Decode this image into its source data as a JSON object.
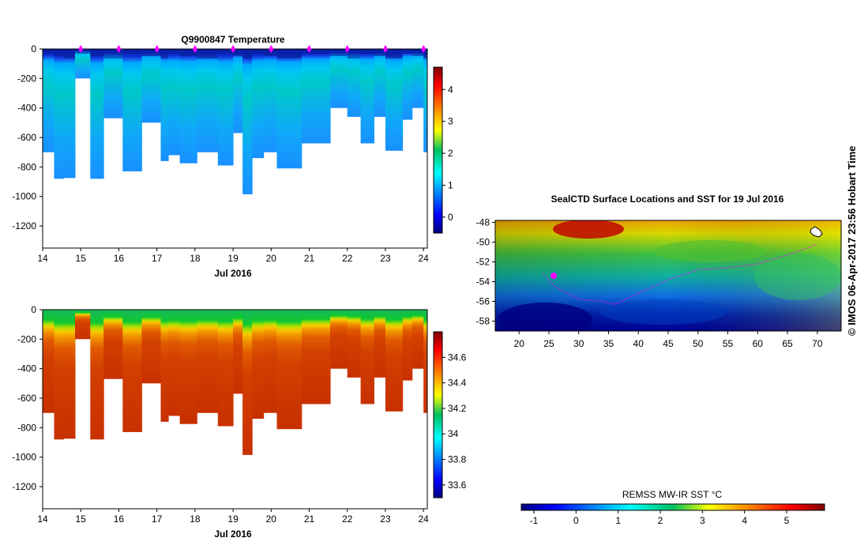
{
  "top": {
    "title": "Q9900847  Temperature",
    "xlabel": "Jul 2016",
    "x_ticks": [
      "14",
      "15",
      "16",
      "17",
      "18",
      "19",
      "20",
      "21",
      "22",
      "23",
      "24"
    ],
    "y_ticks": [
      "0",
      "-200",
      "-400",
      "-600",
      "-800",
      "-1000",
      "-1200"
    ],
    "cbar_ticks": [
      "4",
      "3",
      "2",
      "1",
      "0"
    ]
  },
  "bottom": {
    "xlabel": "Jul 2016",
    "x_ticks": [
      "14",
      "15",
      "16",
      "17",
      "18",
      "19",
      "20",
      "21",
      "22",
      "23",
      "24"
    ],
    "y_ticks": [
      "0",
      "-200",
      "-400",
      "-600",
      "-800",
      "-1000",
      "-1200"
    ],
    "cbar_ticks": [
      "34.6",
      "34.4",
      "34.2",
      "34",
      "33.8",
      "33.6"
    ]
  },
  "map": {
    "title": "SealCTD Surface Locations and SST for 19 Jul 2016",
    "lon_ticks": [
      "20",
      "25",
      "30",
      "35",
      "40",
      "45",
      "50",
      "55",
      "60",
      "65",
      "70"
    ],
    "lat_ticks": [
      "-48",
      "-50",
      "-52",
      "-54",
      "-56",
      "-58"
    ],
    "cbar_label": "REMSS MW-IR SST °C",
    "cbar_ticks": [
      "-1",
      "0",
      "1",
      "2",
      "3",
      "4",
      "5"
    ]
  },
  "credit": "© IMOS 06-Apr-2017 23:56 Hobart Time",
  "colors": {
    "magenta": "#ff00ff",
    "dark_blue": "#00007f",
    "dark_red": "#7f0000"
  },
  "chart_data": [
    {
      "type": "heatmap",
      "title": "Q9900847  Temperature",
      "xlabel": "Jul 2016",
      "ylabel": "",
      "xlim": [
        14,
        24.1
      ],
      "ylim": [
        -1350,
        0
      ],
      "clim": [
        -0.5,
        4.7
      ],
      "surface_markers_day": [
        15,
        16,
        17,
        18,
        19,
        20,
        21,
        22,
        23,
        24
      ],
      "profiles": [
        {
          "day": 14.0,
          "max_depth": 700
        },
        {
          "day": 14.3,
          "max_depth": 880
        },
        {
          "day": 14.55,
          "max_depth": 875
        },
        {
          "day": 14.85,
          "max_depth": 200
        },
        {
          "day": 15.25,
          "max_depth": 880
        },
        {
          "day": 15.6,
          "max_depth": 470
        },
        {
          "day": 16.1,
          "max_depth": 830
        },
        {
          "day": 16.6,
          "max_depth": 500
        },
        {
          "day": 17.1,
          "max_depth": 760
        },
        {
          "day": 17.3,
          "max_depth": 720
        },
        {
          "day": 17.6,
          "max_depth": 775
        },
        {
          "day": 18.05,
          "max_depth": 700
        },
        {
          "day": 18.6,
          "max_depth": 790
        },
        {
          "day": 19.0,
          "max_depth": 570
        },
        {
          "day": 19.25,
          "max_depth": 985
        },
        {
          "day": 19.5,
          "max_depth": 740
        },
        {
          "day": 19.8,
          "max_depth": 700
        },
        {
          "day": 20.15,
          "max_depth": 810
        },
        {
          "day": 20.8,
          "max_depth": 640
        },
        {
          "day": 21.55,
          "max_depth": 400
        },
        {
          "day": 22.0,
          "max_depth": 460
        },
        {
          "day": 22.35,
          "max_depth": 640
        },
        {
          "day": 22.7,
          "max_depth": 460
        },
        {
          "day": 23.0,
          "max_depth": 690
        },
        {
          "day": 23.45,
          "max_depth": 480
        },
        {
          "day": 23.7,
          "max_depth": 400
        },
        {
          "day": 24.0,
          "max_depth": 700
        }
      ],
      "end_day": 24.1
    },
    {
      "type": "heatmap",
      "title": "",
      "xlabel": "Jul 2016",
      "ylabel": "",
      "xlim": [
        14,
        24.1
      ],
      "ylim": [
        -1350,
        0
      ],
      "clim": [
        33.5,
        34.8
      ]
    },
    {
      "type": "heatmap",
      "title": "SealCTD Surface Locations and SST for 19 Jul 2016",
      "xlabel": "",
      "ylabel": "",
      "xlim": [
        16,
        74
      ],
      "ylim": [
        -59,
        -47.8
      ],
      "clim": [
        -1.3,
        5.9
      ],
      "colorbar_label": "REMSS MW-IR SST °C",
      "track": [
        [
          24,
          -53.2
        ],
        [
          26,
          -54.5
        ],
        [
          30,
          -55.8
        ],
        [
          34,
          -56.0
        ],
        [
          36,
          -56.3
        ],
        [
          40,
          -55.2
        ],
        [
          45,
          -53.8
        ],
        [
          50,
          -52.8
        ],
        [
          55,
          -52.6
        ],
        [
          60,
          -52.2
        ],
        [
          65,
          -51.3
        ],
        [
          70,
          -50.2
        ]
      ],
      "marker": [
        25.8,
        -53.4
      ]
    }
  ]
}
